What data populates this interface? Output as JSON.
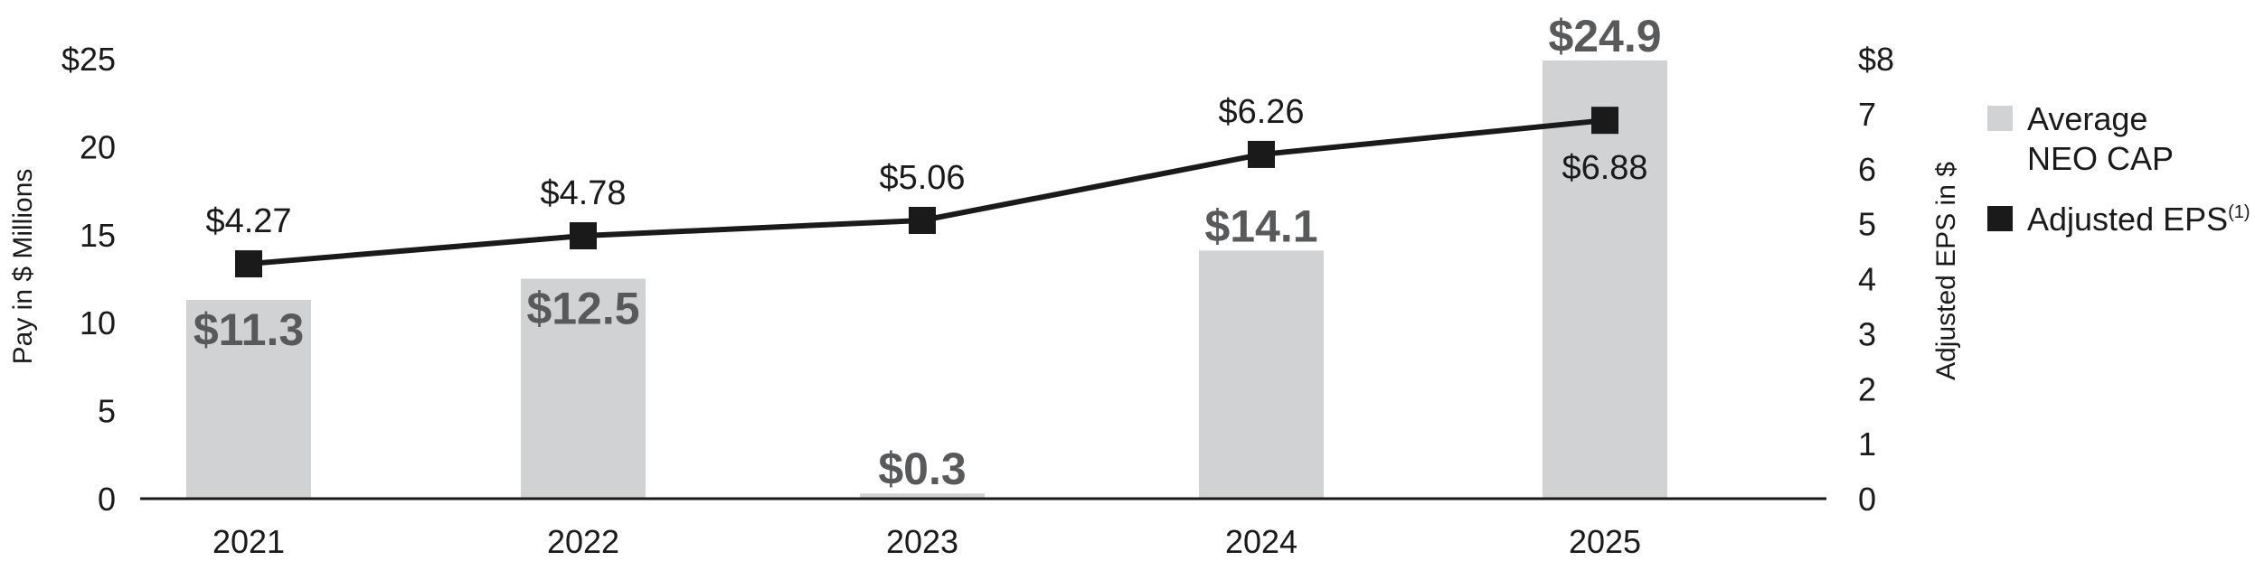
{
  "chart_data": {
    "type": "bar",
    "categories": [
      "2021",
      "2022",
      "2023",
      "2024",
      "2025"
    ],
    "series": [
      {
        "name": "Average NEO CAP",
        "legend_lines": [
          "Average",
          "NEO CAP"
        ],
        "kind": "bar",
        "axis": "left",
        "values": [
          11.3,
          12.5,
          0.3,
          14.1,
          24.9
        ],
        "labels": [
          "$11.3",
          "$12.5",
          "$0.3",
          "$14.1",
          "$24.9"
        ],
        "label_position": [
          "inside",
          "inside",
          "above",
          "above",
          "above"
        ],
        "color": "#d1d2d4",
        "label_color": "#58595b"
      },
      {
        "name": "Adjusted EPS",
        "name_superscript": "(1)",
        "kind": "line",
        "marker": "square",
        "axis": "right",
        "values": [
          4.27,
          4.78,
          5.06,
          6.26,
          6.88
        ],
        "labels": [
          "$4.27",
          "$4.78",
          "$5.06",
          "$6.26",
          "$6.88"
        ],
        "label_position": [
          "above",
          "above",
          "above",
          "above",
          "below"
        ],
        "color": "#1a1a1a"
      }
    ],
    "y_left": {
      "label": "Pay in $ Millions",
      "ylim": [
        0,
        25
      ],
      "ticks": [
        0,
        5,
        10,
        15,
        20,
        25
      ],
      "tick_labels": [
        "0",
        "5",
        "10",
        "15",
        "20",
        "$25"
      ]
    },
    "y_right": {
      "label": "Adjusted EPS in $",
      "ylim": [
        0,
        8
      ],
      "ticks": [
        0,
        1,
        2,
        3,
        4,
        5,
        6,
        7,
        8
      ],
      "tick_labels": [
        "0",
        "1",
        "2",
        "3",
        "4",
        "5",
        "6",
        "7",
        "$8"
      ]
    },
    "grid": false,
    "legend_position": "right"
  }
}
